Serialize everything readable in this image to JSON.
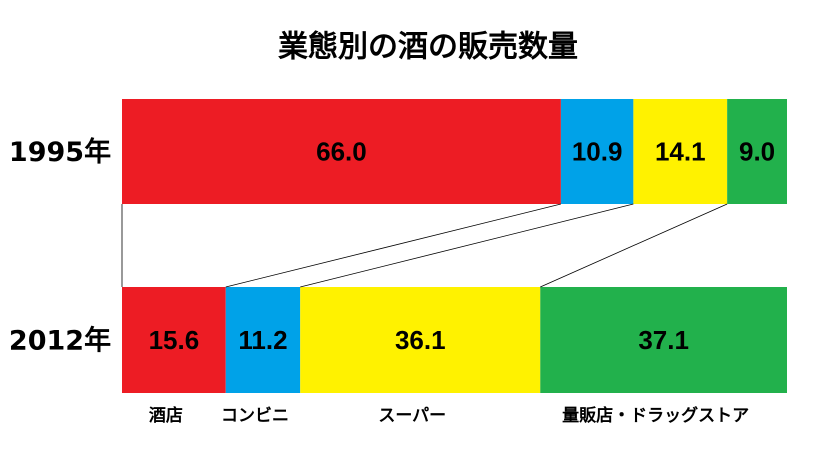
{
  "chart_data": {
    "type": "bar",
    "orientation": "horizontal",
    "stacked": true,
    "normalized": true,
    "title": "業態別の酒の販売数量",
    "categories": [
      "1995年",
      "2012年"
    ],
    "series": [
      {
        "name": "酒店",
        "color": "#ed1c24",
        "values": [
          66.0,
          15.6
        ],
        "value_labels": [
          "66.0",
          "15.6"
        ]
      },
      {
        "name": "コンビニ",
        "color": "#00a2e8",
        "values": [
          10.9,
          11.2
        ],
        "value_labels": [
          "10.9",
          "11.2"
        ]
      },
      {
        "name": "スーパー",
        "color": "#fff200",
        "values": [
          14.1,
          36.1
        ],
        "value_labels": [
          "14.1",
          "36.1"
        ]
      },
      {
        "name": "量販店・ドラッグストア",
        "color": "#22b14c",
        "values": [
          9.0,
          37.1
        ],
        "value_labels": [
          "9.0",
          "37.1"
        ]
      }
    ]
  }
}
